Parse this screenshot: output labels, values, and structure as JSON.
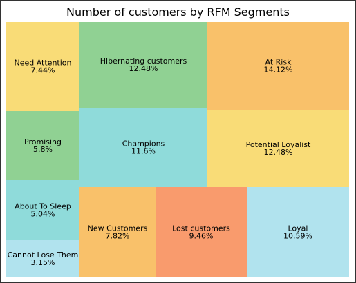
{
  "chart_data": {
    "type": "treemap",
    "title": "Number of customers by RFM Segments",
    "segments": [
      {
        "label": "Need Attention",
        "value_text": "7.44%",
        "value": 7.44,
        "color": "#f9dc77"
      },
      {
        "label": "Hibernating customers",
        "value_text": "12.48%",
        "value": 12.48,
        "color": "#90d193"
      },
      {
        "label": "At Risk",
        "value_text": "14.12%",
        "value": 14.12,
        "color": "#f9c16a"
      },
      {
        "label": "Promising",
        "value_text": "5.8%",
        "value": 5.8,
        "color": "#90d193"
      },
      {
        "label": "Champions",
        "value_text": "11.6%",
        "value": 11.6,
        "color": "#8fdbda"
      },
      {
        "label": "Potential Loyalist",
        "value_text": "12.48%",
        "value": 12.48,
        "color": "#f9dc77"
      },
      {
        "label": "About To Sleep",
        "value_text": "5.04%",
        "value": 5.04,
        "color": "#8fdbda"
      },
      {
        "label": "Cannot Lose Them",
        "value_text": "3.15%",
        "value": 3.15,
        "color": "#b1e3ee"
      },
      {
        "label": "New Customers",
        "value_text": "7.82%",
        "value": 7.82,
        "color": "#f9c16a"
      },
      {
        "label": "Lost customers",
        "value_text": "9.46%",
        "value": 9.46,
        "color": "#f99b6d"
      },
      {
        "label": "Loyal",
        "value_text": "10.59%",
        "value": 10.59,
        "color": "#b1e3ee"
      }
    ]
  }
}
